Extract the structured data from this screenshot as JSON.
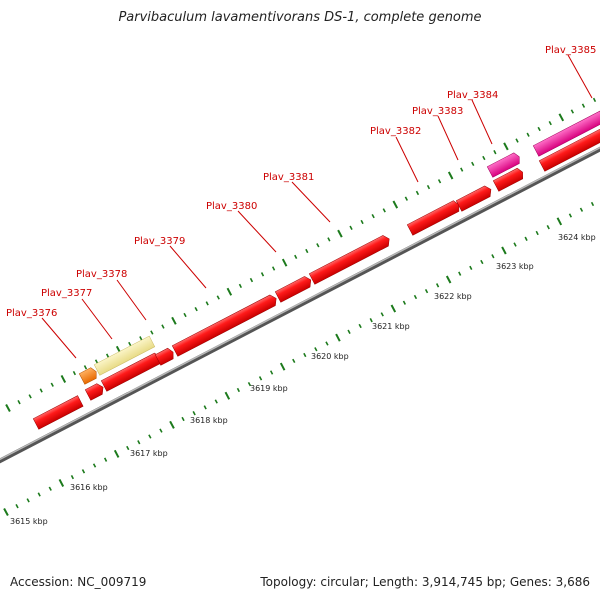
{
  "title": "Parvibaculum lavamentivorans DS-1, complete genome",
  "accession": "Accession: NC_009719",
  "summary": "Topology: circular; Length: 3,914,745 bp; Genes: 3,686",
  "colors": {
    "red": "#ee0000",
    "orange": "#ff7700",
    "pale": "#f3eaa0",
    "pink": "#ee1199",
    "tick_green": "#1c7a1c",
    "label_red": "#cc0000",
    "backbone": "#888888"
  },
  "kbp_labels": [
    "3615 kbp",
    "3616 kbp",
    "3617 kbp",
    "3618 kbp",
    "3619 kbp",
    "3620 kbp",
    "3621 kbp",
    "3622 kbp",
    "3623 kbp",
    "3624 kbp"
  ],
  "gene_labels": [
    "Plav_3376",
    "Plav_3377",
    "Plav_3378",
    "Plav_3379",
    "Plav_3380",
    "Plav_3381",
    "Plav_3382",
    "Plav_3383",
    "Plav_3384",
    "Plav_3385"
  ]
}
